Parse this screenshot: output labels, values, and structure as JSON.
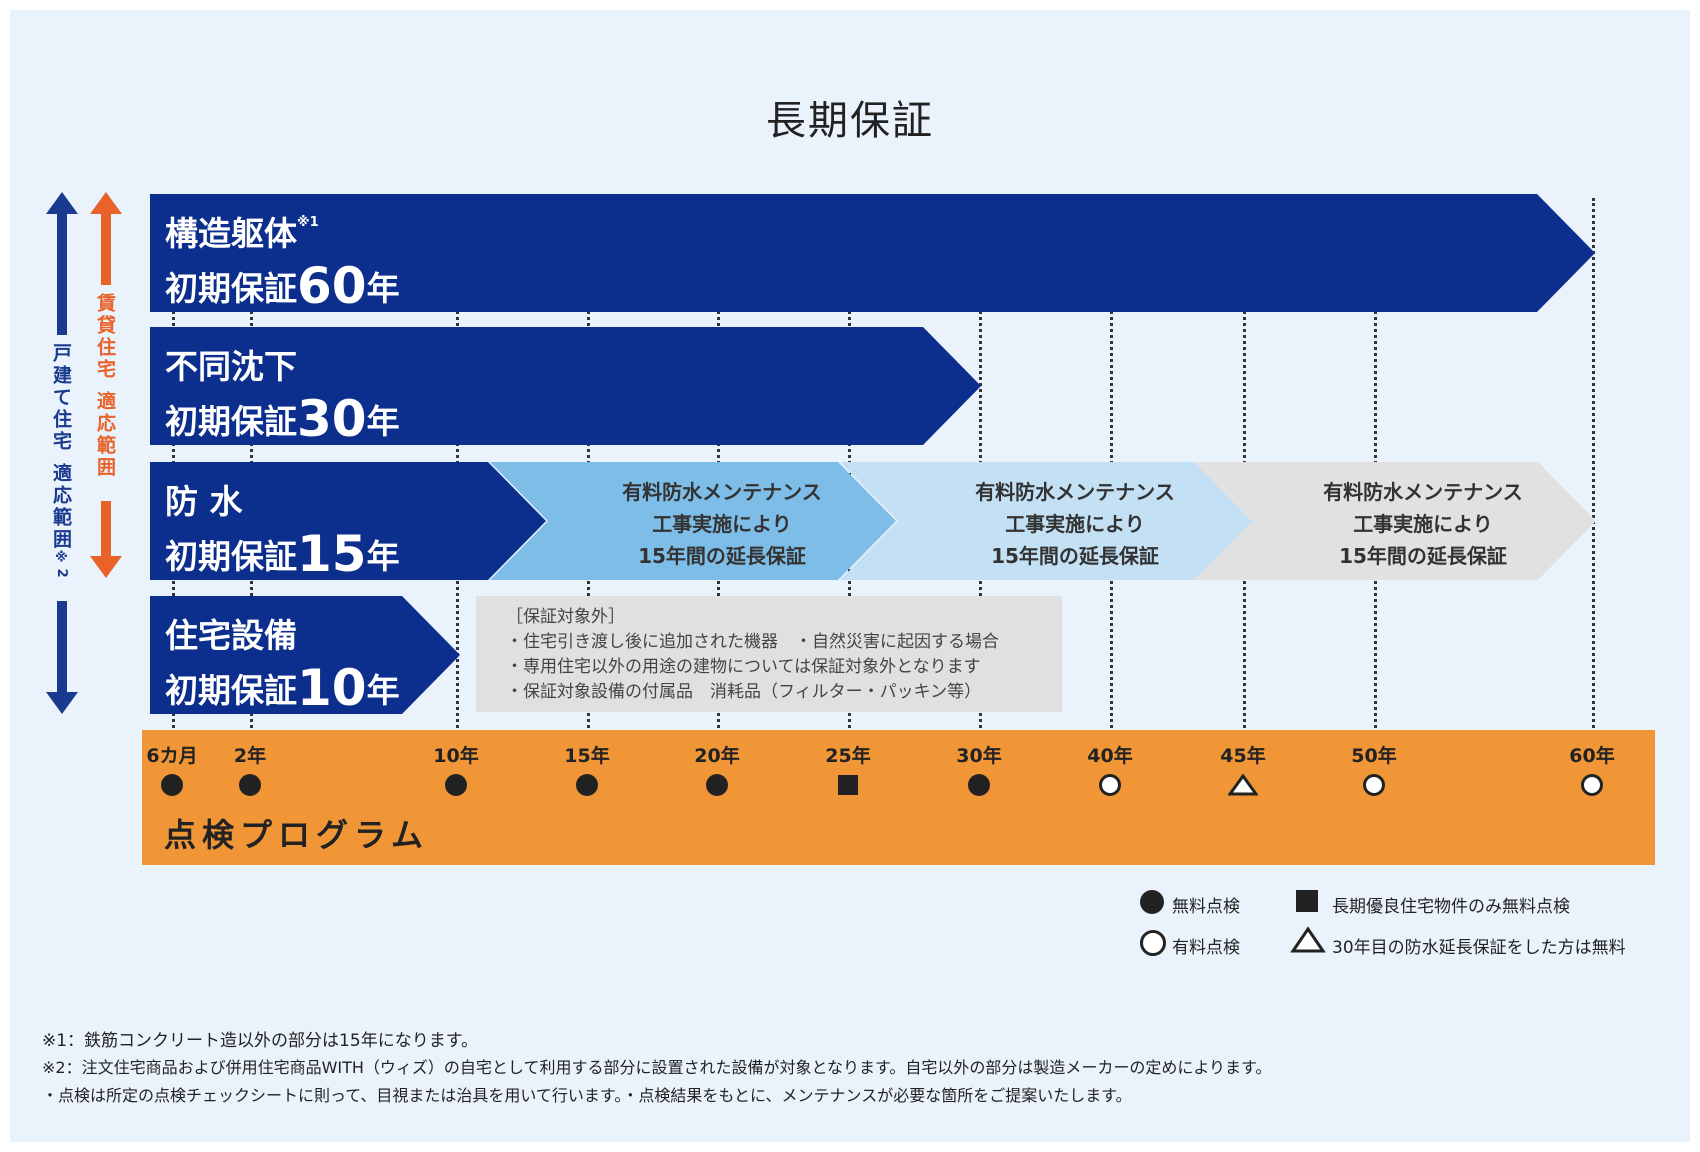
{
  "title": "長期保証",
  "side_labels": {
    "detached": "戸建て住宅 適応範囲",
    "detached_note": "※2",
    "rental": "賃貸住宅 適応範囲"
  },
  "bars": [
    {
      "name": "構造躯体",
      "sup": "※1",
      "prefix": "初期保証",
      "years": "60",
      "suffix": "年",
      "color": "#0c2e8c"
    },
    {
      "name": "不同沈下",
      "sup": "",
      "prefix": "初期保証",
      "years": "30",
      "suffix": "年",
      "color": "#0c2e8c"
    },
    {
      "name": "防 水",
      "sup": "",
      "prefix": "初期保証",
      "years": "15",
      "suffix": "年",
      "color": "#0c2e8c"
    },
    {
      "name": "住宅設備",
      "sup": "",
      "prefix": "初期保証",
      "years": "10",
      "suffix": "年",
      "color": "#0c2e8c"
    }
  ],
  "extensions": [
    {
      "line1": "有料防水メンテナンス",
      "line2": "工事実施により",
      "line3": "15年間の延長保証",
      "color": "#7dbde8"
    },
    {
      "line1": "有料防水メンテナンス",
      "line2": "工事実施により",
      "line3": "15年間の延長保証",
      "color": "#c3e0f5"
    },
    {
      "line1": "有料防水メンテナンス",
      "line2": "工事実施により",
      "line3": "15年間の延長保証",
      "color": "#e1e1e1"
    }
  ],
  "exclusions": {
    "heading": "［保証対象外］",
    "items": [
      "・住宅引き渡し後に追加された機器　・自然災害に起因する場合",
      "・専用住宅以外の用途の建物については保証対象外となります",
      "・保証対象設備の付属品　消耗品（フィルター・パッキン等）"
    ]
  },
  "program": {
    "label": "点検プログラム",
    "color": "#f09637",
    "ticks": [
      {
        "label": "6カ月",
        "marker": "free"
      },
      {
        "label": "2年",
        "marker": "free"
      },
      {
        "label": "10年",
        "marker": "free"
      },
      {
        "label": "15年",
        "marker": "free"
      },
      {
        "label": "20年",
        "marker": "free"
      },
      {
        "label": "25年",
        "marker": "long-term"
      },
      {
        "label": "30年",
        "marker": "free"
      },
      {
        "label": "40年",
        "marker": "paid"
      },
      {
        "label": "45年",
        "marker": "conditional"
      },
      {
        "label": "50年",
        "marker": "paid"
      },
      {
        "label": "60年",
        "marker": "paid"
      }
    ]
  },
  "legend": {
    "free": "無料点検",
    "paid": "有料点検",
    "long_term": "長期優良住宅物件のみ無料点検",
    "conditional": "30年目の防水延長保証をした方は無料"
  },
  "notes": [
    "※1：鉄筋コンクリート造以外の部分は15年になります。",
    "※2：注文住宅商品および併用住宅商品WITH（ウィズ）の自宅として利用する部分に設置された設備が対象となります。自宅以外の部分は製造メーカーの定めによります。",
    "・点検は所定の点検チェックシートに則って、目視または治具を用いて行います。・点検結果をもとに、メンテナンスが必要な箇所をご提案いたします。"
  ],
  "colors": {
    "navy": "#0c2e8c",
    "arrow_navy": "#1a3a8f",
    "arrow_orange": "#e8622a",
    "background": "#eaf3fb"
  }
}
